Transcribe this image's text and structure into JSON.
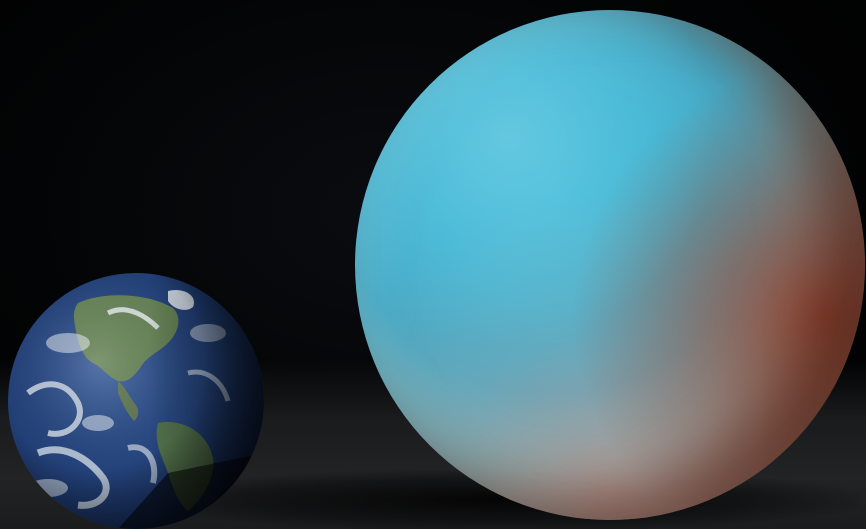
{
  "scene": {
    "background_color": "#000000",
    "objects": [
      {
        "name": "earth",
        "colors": {
          "ocean": "#24427a",
          "land": "#5c7a4a",
          "cloud": "#e6ecf2"
        }
      },
      {
        "name": "large-blue-planet",
        "colors": {
          "primary": "#3cb3d3",
          "terminator": "#8a4a38"
        }
      }
    ]
  }
}
